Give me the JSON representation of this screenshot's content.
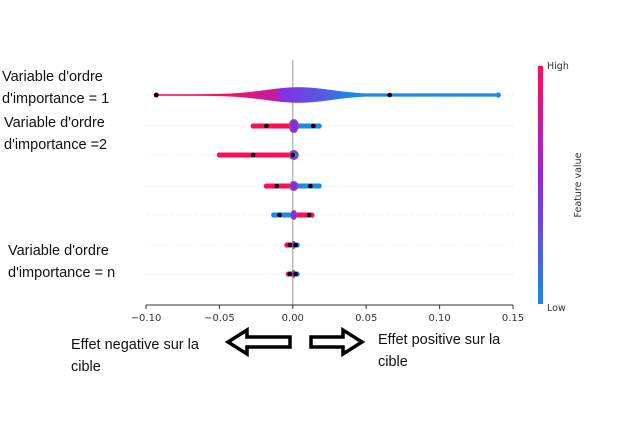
{
  "row_labels": [
    {
      "line1": "Variable d'ordre",
      "line2": "d'importance = 1"
    },
    {
      "line1": "Variable d'ordre",
      "line2": "d'importance =2"
    },
    {
      "line1": "Variable d'ordre",
      "line2": "d'importance = n"
    }
  ],
  "effects": {
    "negative": {
      "line1": "Effet  negative sur la",
      "line2": "cible"
    },
    "positive": {
      "line1": "Effet  positive sur la",
      "line2": "cible"
    }
  },
  "colorbar": {
    "high": "High",
    "low": "Low",
    "title": "Feature value"
  },
  "colors": {
    "high": "#ff0d57",
    "mid": "#8a2be2",
    "low": "#1e88e5",
    "axis": "#333333",
    "gridline": "#cccccc"
  },
  "chart_data": {
    "type": "scatter",
    "subtype": "beeswarm",
    "xlabel": "",
    "xlim": [
      -0.105,
      0.152
    ],
    "x_ticks": [
      -0.1,
      -0.05,
      0.0,
      0.05,
      0.1,
      0.15
    ],
    "x_tick_labels": [
      "−0.10",
      "−0.05",
      "0.00",
      "0.05",
      "0.10",
      "0.15"
    ],
    "grid": false,
    "colorbar": "right",
    "features": [
      {
        "rank": 1,
        "x_min": -0.093,
        "x_max": 0.14,
        "neg_color": "high",
        "pos_color": "low",
        "mean_high": -0.093,
        "mean_low": 0.066
      },
      {
        "rank": 2,
        "x_min": -0.027,
        "x_max": 0.018,
        "neg_color": "high",
        "pos_color": "low",
        "mean_high": -0.018,
        "mean_low": 0.014
      },
      {
        "rank": 3,
        "x_min": -0.05,
        "x_max": 0.001,
        "neg_color": "high",
        "pos_color": "low",
        "mean_high": -0.027,
        "mean_low": 0.0
      },
      {
        "rank": 4,
        "x_min": -0.018,
        "x_max": 0.018,
        "neg_color": "high",
        "pos_color": "low",
        "mean_high": -0.011,
        "mean_low": 0.012
      },
      {
        "rank": 5,
        "x_min": -0.013,
        "x_max": 0.013,
        "neg_color": "low",
        "pos_color": "high",
        "mean_high": 0.011,
        "mean_low": -0.009
      },
      {
        "rank": 6,
        "x_min": -0.004,
        "x_max": 0.003,
        "neg_color": "high",
        "pos_color": "low",
        "mean_high": -0.002,
        "mean_low": 0.002
      },
      {
        "rank": 7,
        "x_min": -0.003,
        "x_max": 0.003,
        "neg_color": "high",
        "pos_color": "low",
        "mean_high": -0.002,
        "mean_low": 0.002
      }
    ]
  }
}
